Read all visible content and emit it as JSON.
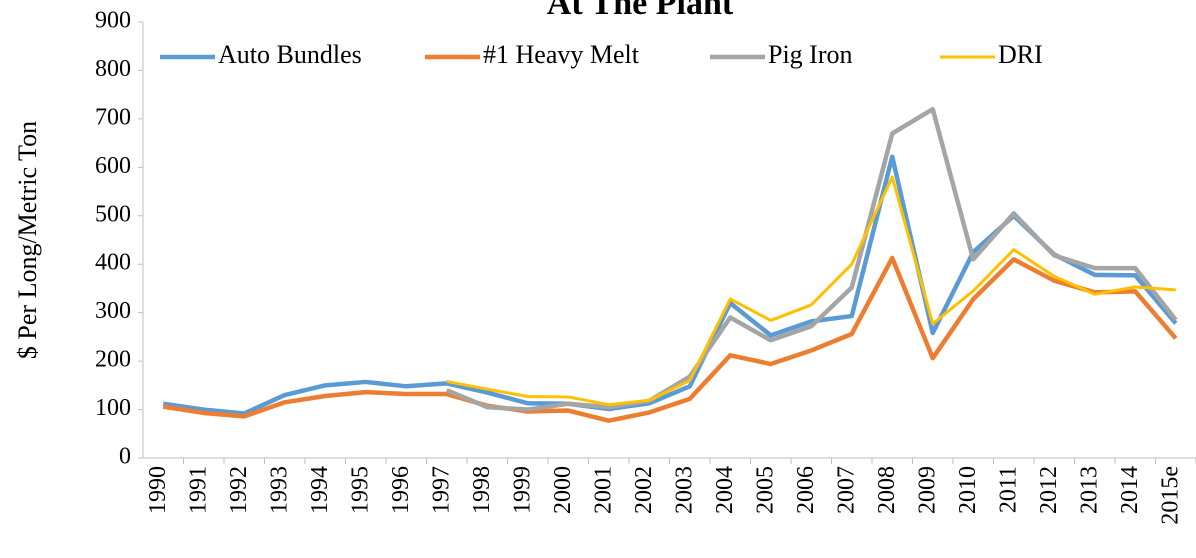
{
  "chart_data": {
    "type": "line",
    "title": "At The Plant",
    "y_label": "$ Per Long/Metric Ton",
    "categories": [
      "1990",
      "1991",
      "1992",
      "1993",
      "1994",
      "1995",
      "1996",
      "1997",
      "1998",
      "1999",
      "2000",
      "2001",
      "2002",
      "2003",
      "2004",
      "2005",
      "2006",
      "2007",
      "2008",
      "2009",
      "2010",
      "2011",
      "2012",
      "2013",
      "2014",
      "2015e"
    ],
    "series": [
      {
        "name": "Auto Bundles",
        "color": "#5b9bd5",
        "values": [
          112,
          100,
          92,
          130,
          150,
          157,
          148,
          154,
          135,
          113,
          112,
          101,
          113,
          148,
          320,
          253,
          282,
          293,
          622,
          258,
          425,
          500,
          420,
          378,
          377,
          278
        ]
      },
      {
        "name": "#1 Heavy Melt",
        "color": "#ed7d31",
        "values": [
          106,
          93,
          86,
          115,
          128,
          136,
          132,
          132,
          108,
          96,
          98,
          77,
          94,
          122,
          212,
          194,
          222,
          256,
          413,
          206,
          328,
          410,
          366,
          342,
          344,
          247
        ]
      },
      {
        "name": "Pig Iron",
        "color": "#a5a5a5",
        "values": [
          null,
          null,
          null,
          null,
          null,
          null,
          null,
          140,
          105,
          100,
          112,
          105,
          118,
          168,
          290,
          243,
          272,
          352,
          670,
          720,
          410,
          505,
          418,
          392,
          392,
          285
        ]
      },
      {
        "name": "DRI",
        "color": "#ffc000",
        "values": [
          null,
          null,
          null,
          null,
          null,
          null,
          null,
          158,
          142,
          127,
          126,
          110,
          119,
          160,
          328,
          284,
          316,
          400,
          580,
          277,
          345,
          430,
          375,
          338,
          353,
          347
        ]
      }
    ],
    "ylim": [
      0,
      900
    ],
    "yticks": [
      0,
      100,
      200,
      300,
      400,
      500,
      600,
      700,
      800,
      900
    ],
    "legend": "top-left",
    "grid": false
  }
}
